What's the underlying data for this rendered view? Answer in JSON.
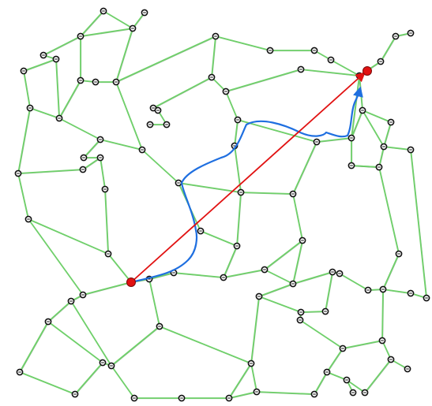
{
  "colors": {
    "background": "#ffffff",
    "edge": "#6fd06a",
    "edge_shadow": "#2f6b2c",
    "node_fill": "#ffffff",
    "node_stroke": "#111111",
    "endpoint": "#e11212",
    "straight_line": "#e11212",
    "route": "#1f6fe0"
  },
  "icons": {
    "node": "circle-node-icon",
    "endpoint": "red-dot-icon",
    "arrowhead": "arrowhead-icon"
  }
}
